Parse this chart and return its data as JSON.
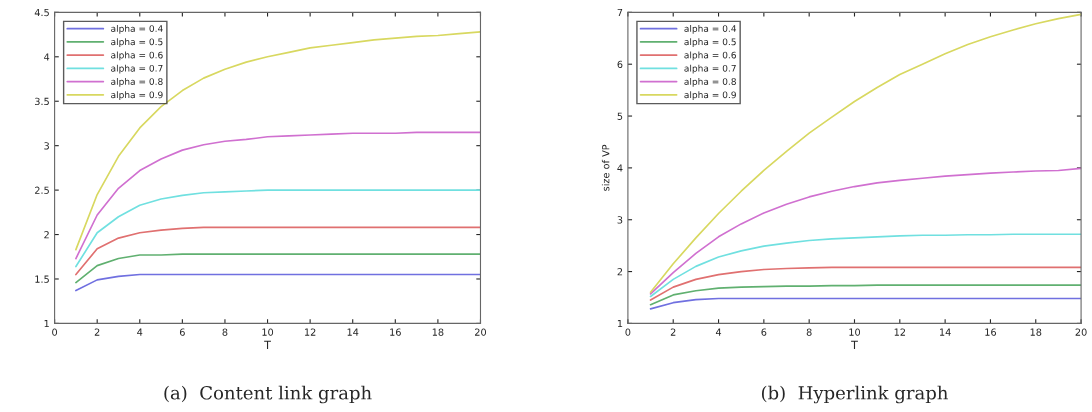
{
  "chart_data": [
    {
      "type": "line",
      "xlabel": "T",
      "annotations": [
        "(a)  Content link graph"
      ],
      "x": [
        1,
        2,
        3,
        4,
        5,
        6,
        7,
        8,
        9,
        10,
        11,
        12,
        13,
        14,
        15,
        16,
        17,
        18,
        19,
        20
      ],
      "xlim": [
        0,
        20
      ],
      "xticks": [
        0,
        2,
        4,
        6,
        8,
        10,
        12,
        14,
        16,
        18,
        20
      ],
      "ylim": [
        1,
        4.5
      ],
      "yticks": [
        1,
        1.5,
        2,
        2.5,
        3,
        3.5,
        4,
        4.5
      ],
      "grid": false,
      "legend": "top left",
      "series": [
        {
          "name": "alpha = 0.4",
          "color": "#7070e0",
          "values": [
            1.37,
            1.49,
            1.53,
            1.55,
            1.55,
            1.55,
            1.55,
            1.55,
            1.55,
            1.55,
            1.55,
            1.55,
            1.55,
            1.55,
            1.55,
            1.55,
            1.55,
            1.55,
            1.55,
            1.55
          ]
        },
        {
          "name": "alpha = 0.5",
          "color": "#60b070",
          "values": [
            1.46,
            1.65,
            1.73,
            1.77,
            1.77,
            1.78,
            1.78,
            1.78,
            1.78,
            1.78,
            1.78,
            1.78,
            1.78,
            1.78,
            1.78,
            1.78,
            1.78,
            1.78,
            1.78,
            1.78
          ]
        },
        {
          "name": "alpha = 0.6",
          "color": "#e07070",
          "values": [
            1.55,
            1.84,
            1.96,
            2.02,
            2.05,
            2.07,
            2.08,
            2.08,
            2.08,
            2.08,
            2.08,
            2.08,
            2.08,
            2.08,
            2.08,
            2.08,
            2.08,
            2.08,
            2.08,
            2.08
          ]
        },
        {
          "name": "alpha = 0.7",
          "color": "#70e0e0",
          "values": [
            1.64,
            2.02,
            2.2,
            2.33,
            2.4,
            2.44,
            2.47,
            2.48,
            2.49,
            2.5,
            2.5,
            2.5,
            2.5,
            2.5,
            2.5,
            2.5,
            2.5,
            2.5,
            2.5,
            2.5
          ]
        },
        {
          "name": "alpha = 0.8",
          "color": "#d070d0",
          "values": [
            1.73,
            2.22,
            2.52,
            2.72,
            2.85,
            2.95,
            3.01,
            3.05,
            3.07,
            3.1,
            3.11,
            3.12,
            3.13,
            3.14,
            3.14,
            3.14,
            3.15,
            3.15,
            3.15,
            3.15
          ]
        },
        {
          "name": "alpha = 0.9",
          "color": "#d8d860",
          "values": [
            1.83,
            2.45,
            2.88,
            3.2,
            3.44,
            3.62,
            3.76,
            3.86,
            3.94,
            4.0,
            4.05,
            4.1,
            4.13,
            4.16,
            4.19,
            4.21,
            4.23,
            4.24,
            4.26,
            4.28
          ]
        }
      ]
    },
    {
      "type": "line",
      "xlabel": "T",
      "ylabel": "size of VP",
      "annotations": [
        "(b)  Hyperlink graph"
      ],
      "x": [
        1,
        2,
        3,
        4,
        5,
        6,
        7,
        8,
        9,
        10,
        11,
        12,
        13,
        14,
        15,
        16,
        17,
        18,
        19,
        20
      ],
      "xlim": [
        0,
        20
      ],
      "xticks": [
        0,
        2,
        4,
        6,
        8,
        10,
        12,
        14,
        16,
        18,
        20
      ],
      "ylim": [
        1,
        7
      ],
      "yticks": [
        1,
        2,
        3,
        4,
        5,
        6,
        7
      ],
      "grid": false,
      "legend": "top left",
      "series": [
        {
          "name": "alpha = 0.4",
          "color": "#7070e0",
          "values": [
            1.28,
            1.4,
            1.46,
            1.48,
            1.48,
            1.48,
            1.48,
            1.48,
            1.48,
            1.48,
            1.48,
            1.48,
            1.48,
            1.48,
            1.48,
            1.48,
            1.48,
            1.48,
            1.48,
            1.48
          ]
        },
        {
          "name": "alpha = 0.5",
          "color": "#60b070",
          "values": [
            1.36,
            1.55,
            1.63,
            1.68,
            1.7,
            1.71,
            1.72,
            1.72,
            1.73,
            1.73,
            1.74,
            1.74,
            1.74,
            1.74,
            1.74,
            1.74,
            1.74,
            1.74,
            1.74,
            1.74
          ]
        },
        {
          "name": "alpha = 0.6",
          "color": "#e07070",
          "values": [
            1.45,
            1.7,
            1.85,
            1.94,
            2.0,
            2.04,
            2.06,
            2.07,
            2.08,
            2.08,
            2.08,
            2.08,
            2.08,
            2.08,
            2.08,
            2.08,
            2.08,
            2.08,
            2.08,
            2.08
          ]
        },
        {
          "name": "alpha = 0.7",
          "color": "#70e0e0",
          "values": [
            1.52,
            1.85,
            2.1,
            2.28,
            2.4,
            2.49,
            2.55,
            2.6,
            2.63,
            2.65,
            2.67,
            2.69,
            2.7,
            2.7,
            2.71,
            2.71,
            2.72,
            2.72,
            2.72,
            2.72
          ]
        },
        {
          "name": "alpha = 0.8",
          "color": "#d070d0",
          "values": [
            1.57,
            1.98,
            2.35,
            2.67,
            2.92,
            3.13,
            3.3,
            3.44,
            3.55,
            3.64,
            3.71,
            3.76,
            3.8,
            3.84,
            3.87,
            3.9,
            3.92,
            3.94,
            3.95,
            3.99
          ]
        },
        {
          "name": "alpha = 0.9",
          "color": "#d8d860",
          "values": [
            1.6,
            2.15,
            2.65,
            3.12,
            3.55,
            3.95,
            4.32,
            4.67,
            4.98,
            5.28,
            5.55,
            5.8,
            6.0,
            6.2,
            6.38,
            6.53,
            6.66,
            6.78,
            6.88,
            6.96
          ]
        }
      ]
    }
  ]
}
